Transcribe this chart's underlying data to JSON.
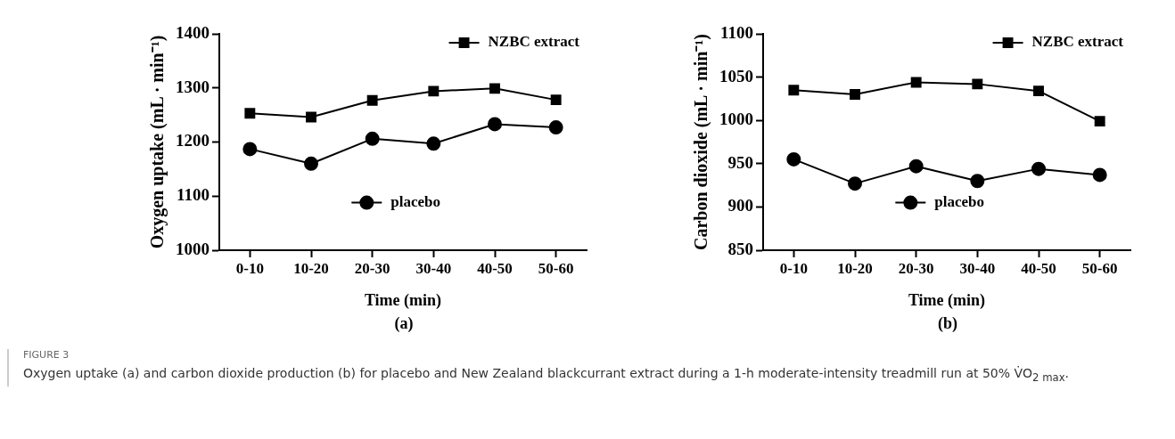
{
  "chart_data": [
    {
      "type": "line",
      "xlabel": "Time (min)",
      "ylabel": "Oxygen uptake (mL · min⁻¹)",
      "categories": [
        "0-10",
        "10-20",
        "20-30",
        "30-40",
        "40-50",
        "50-60"
      ],
      "series": [
        {
          "name": "NZBC extract",
          "color": "#000000",
          "marker": "square",
          "values": [
            1253,
            1246,
            1277,
            1294,
            1299,
            1278
          ]
        },
        {
          "name": "placebo",
          "color": "#000000",
          "marker": "circle",
          "values": [
            1187,
            1160,
            1206,
            1197,
            1233,
            1227
          ]
        }
      ],
      "ylim": [
        1000,
        1400
      ],
      "yticks": [
        1000,
        1100,
        1200,
        1300,
        1400
      ],
      "grid": false,
      "legend": "top right",
      "line_style": "solid",
      "annotations": [
        "(a)",
        "FIGURE 3",
        "Oxygen uptake (a) and carbon dioxide production (b) for placebo and New Zealand blackcurrant extract during a 1-h moderate-intensity treadmill run at 50% V̇O$_{2 max}$."
      ]
    },
    {
      "type": "line",
      "xlabel": "Time (min)",
      "ylabel": "Carbon dioxide (mL · min⁻¹)",
      "categories": [
        "0-10",
        "10-20",
        "20-30",
        "30-40",
        "40-50",
        "50-60"
      ],
      "series": [
        {
          "name": "NZBC extract",
          "color": "#000000",
          "marker": "square",
          "values": [
            1035,
            1030,
            1044,
            1042,
            1034,
            999
          ]
        },
        {
          "name": "placebo",
          "color": "#000000",
          "marker": "circle",
          "values": [
            955,
            927,
            947,
            930,
            944,
            937
          ]
        }
      ],
      "ylim": [
        850,
        1100
      ],
      "yticks": [
        850,
        900,
        950,
        1000,
        1050,
        1100
      ],
      "grid": false,
      "legend": "top right",
      "line_style": "solid",
      "annotations": [
        "(b)"
      ]
    }
  ]
}
